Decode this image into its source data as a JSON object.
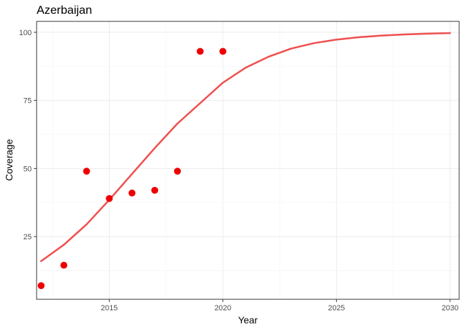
{
  "chart_data": {
    "type": "scatter",
    "title": "Azerbaijan",
    "xlabel": "Year",
    "ylabel": "Coverage",
    "xlim": [
      2011.8,
      2030.4
    ],
    "ylim": [
      2,
      104
    ],
    "x_ticks": [
      2015,
      2020,
      2025,
      2030
    ],
    "y_ticks": [
      25,
      50,
      75,
      100
    ],
    "grid": true,
    "legend": "none",
    "series": [
      {
        "kind": "points",
        "color": "#ee0000",
        "x": [
          2012,
          2013,
          2014,
          2015,
          2016,
          2017,
          2018,
          2019,
          2020
        ],
        "y": [
          7,
          14.5,
          49,
          39,
          41,
          42,
          49,
          93,
          93
        ]
      },
      {
        "kind": "line",
        "color": "#f05050",
        "x": [
          2012,
          2013,
          2014,
          2015,
          2016,
          2017,
          2018,
          2019,
          2020,
          2021,
          2022,
          2023,
          2024,
          2025,
          2026,
          2027,
          2028,
          2029,
          2030
        ],
        "y": [
          16,
          22,
          29.5,
          38.5,
          48,
          57.5,
          66.5,
          74,
          81.5,
          87,
          91,
          94,
          96,
          97.3,
          98.2,
          98.8,
          99.2,
          99.5,
          99.7
        ]
      }
    ]
  }
}
